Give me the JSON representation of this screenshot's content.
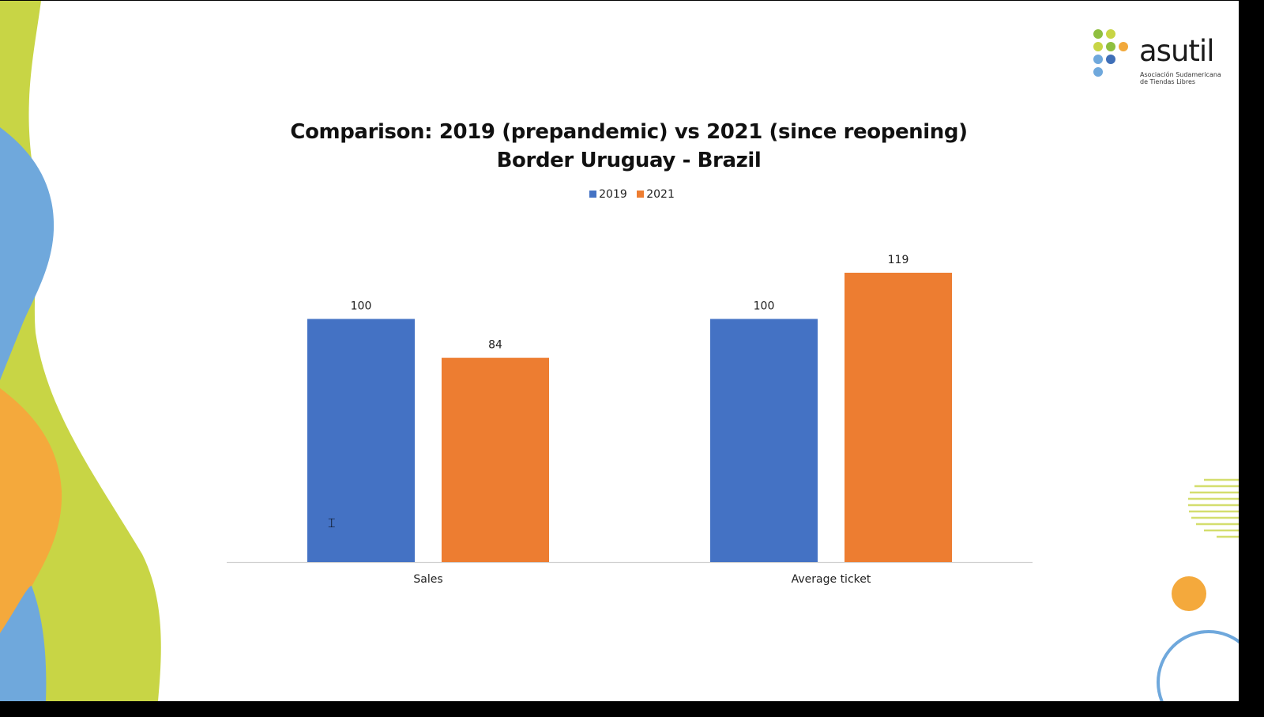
{
  "logo": {
    "wordmark": "asutil",
    "subtitle_line1": "Asociación Sudamericana",
    "subtitle_line2": "de Tiendas Libres",
    "dot_colors": [
      "#8fbf3f",
      "#c8d545",
      "#f2a93b",
      "#3f6fb8",
      "#6fa8dc"
    ]
  },
  "chart_data": {
    "type": "bar",
    "title_line1": "Comparison: 2019 (prepandemic) vs 2021 (since reopening)",
    "title_line2": "Border Uruguay - Brazil",
    "categories": [
      "Sales",
      "Average ticket"
    ],
    "series": [
      {
        "name": "2019",
        "color": "#4472c4",
        "values": [
          100,
          100
        ]
      },
      {
        "name": "2021",
        "color": "#ed7d31",
        "values": [
          84,
          119
        ]
      }
    ],
    "data_labels": true,
    "legend_position": "top",
    "grid": false,
    "ylim": [
      0,
      119
    ]
  },
  "decor_colors": {
    "lime": "#c8d545",
    "blue": "#6fa8dc",
    "orange": "#f4a93c"
  }
}
